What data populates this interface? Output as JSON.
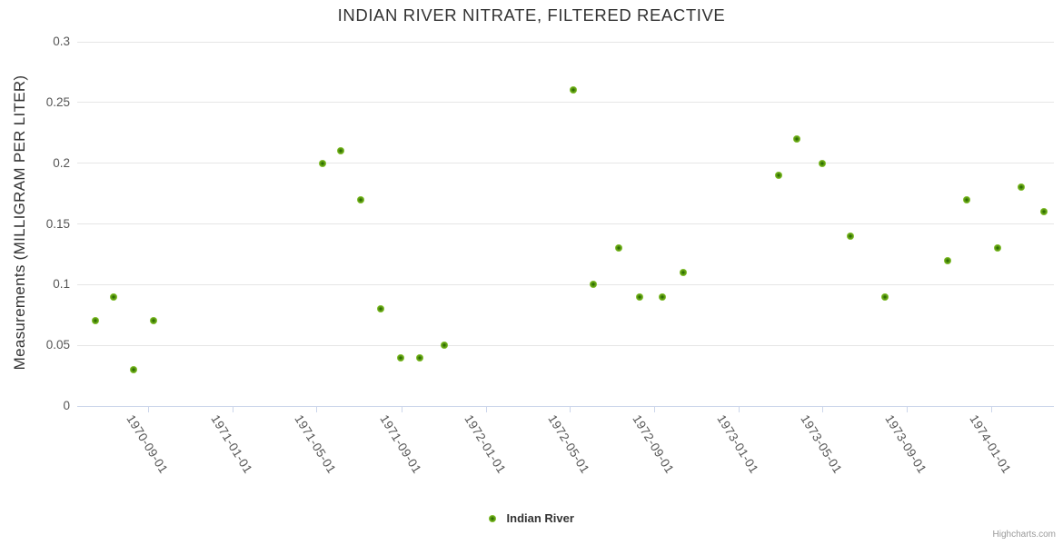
{
  "title": "INDIAN RIVER NITRATE, FILTERED REACTIVE",
  "y_axis": {
    "title": "Measurements (MILLIGRAM PER LITER)",
    "ticks": [
      "0",
      "0.05",
      "0.1",
      "0.15",
      "0.2",
      "0.25",
      "0.3"
    ]
  },
  "x_axis": {
    "ticks": [
      "1970-09-01",
      "1971-01-01",
      "1971-05-01",
      "1971-09-01",
      "1972-01-01",
      "1972-05-01",
      "1972-09-01",
      "1973-01-01",
      "1973-05-01",
      "1973-09-01",
      "1974-01-01"
    ]
  },
  "legend": {
    "label": "Indian River"
  },
  "credits": "Highcharts.com",
  "colors": {
    "marker_outer": "#7fbc2c",
    "marker_mid": "#5f9e11",
    "marker_core": "#2f6f05",
    "grid": "#e6e6e6",
    "axis_line": "#ccd6eb",
    "title_text": "#333333",
    "label_text": "#555555",
    "credits_text": "#999999"
  },
  "chart_data": {
    "type": "scatter",
    "title": "INDIAN RIVER NITRATE, FILTERED REACTIVE",
    "xlabel": "",
    "ylabel": "Measurements (MILLIGRAM PER LITER)",
    "ylim": [
      0,
      0.3
    ],
    "x_range": [
      "1970-05-21",
      "1974-04-01"
    ],
    "grid": true,
    "legend_position": "bottom",
    "marker_diameter_px": 8,
    "series": [
      {
        "name": "Indian River",
        "points": [
          {
            "date": "1970-06-16",
            "value": 0.07
          },
          {
            "date": "1970-07-13",
            "value": 0.09
          },
          {
            "date": "1970-08-11",
            "value": 0.03
          },
          {
            "date": "1970-09-08",
            "value": 0.07
          },
          {
            "date": "1971-05-10",
            "value": 0.2
          },
          {
            "date": "1971-06-06",
            "value": 0.21
          },
          {
            "date": "1971-07-05",
            "value": 0.17
          },
          {
            "date": "1971-08-02",
            "value": 0.08
          },
          {
            "date": "1971-08-31",
            "value": 0.04
          },
          {
            "date": "1971-09-28",
            "value": 0.04
          },
          {
            "date": "1971-11-02",
            "value": 0.05
          },
          {
            "date": "1972-05-07",
            "value": 0.26
          },
          {
            "date": "1972-06-05",
            "value": 0.1
          },
          {
            "date": "1972-07-11",
            "value": 0.13
          },
          {
            "date": "1972-08-10",
            "value": 0.09
          },
          {
            "date": "1972-09-12",
            "value": 0.09
          },
          {
            "date": "1972-10-13",
            "value": 0.11
          },
          {
            "date": "1973-02-27",
            "value": 0.19
          },
          {
            "date": "1973-03-26",
            "value": 0.22
          },
          {
            "date": "1973-05-01",
            "value": 0.2
          },
          {
            "date": "1973-06-11",
            "value": 0.14
          },
          {
            "date": "1973-07-31",
            "value": 0.09
          },
          {
            "date": "1973-10-29",
            "value": 0.12
          },
          {
            "date": "1973-11-26",
            "value": 0.17
          },
          {
            "date": "1974-01-09",
            "value": 0.13
          },
          {
            "date": "1974-02-13",
            "value": 0.18
          },
          {
            "date": "1974-03-17",
            "value": 0.16
          }
        ]
      }
    ]
  }
}
